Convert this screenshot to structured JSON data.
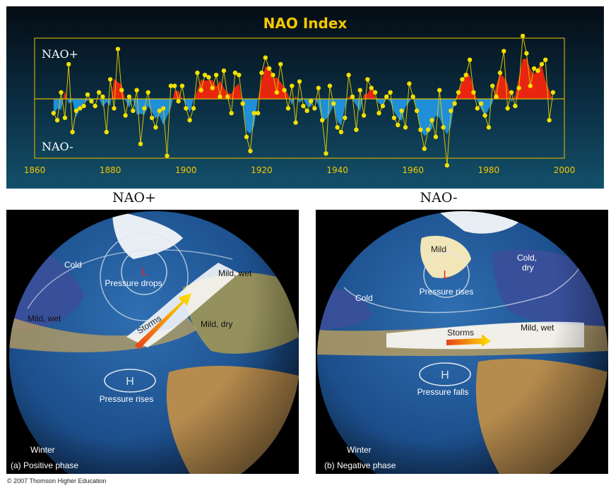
{
  "panel_headings": {
    "positive": "NAO+",
    "negative": "NAO-"
  },
  "chart_data": {
    "type": "area",
    "title": "NAO Index",
    "xlabel": "",
    "ylabel": "",
    "xlim": [
      1860,
      2000
    ],
    "ylim": [
      -2.5,
      2.8
    ],
    "x_ticks": [
      1860,
      1880,
      1900,
      1920,
      1940,
      1960,
      1980,
      2000
    ],
    "annotations": {
      "top": "NAO+",
      "bottom": "NAO-"
    },
    "colors": {
      "positive": "#e8250f",
      "negative": "#1e8fd8",
      "points": "#f2e000",
      "frame": "#c8a800",
      "title": "#f5c800"
    },
    "series": [
      {
        "values": [
          [
            1865,
            -0.6
          ],
          [
            1866,
            -0.9
          ],
          [
            1867,
            0.3
          ],
          [
            1868,
            -0.8
          ],
          [
            1869,
            1.6
          ],
          [
            1870,
            -1.4
          ],
          [
            1871,
            -0.5
          ],
          [
            1872,
            -0.4
          ],
          [
            1873,
            -0.3
          ],
          [
            1874,
            0.2
          ],
          [
            1875,
            -0.1
          ],
          [
            1876,
            -0.3
          ],
          [
            1877,
            0.3
          ],
          [
            1878,
            0.1
          ],
          [
            1879,
            -1.4
          ],
          [
            1880,
            0.9
          ],
          [
            1881,
            -0.4
          ],
          [
            1882,
            2.3
          ],
          [
            1883,
            0.4
          ],
          [
            1884,
            -0.7
          ],
          [
            1885,
            0.1
          ],
          [
            1886,
            -0.5
          ],
          [
            1887,
            0.4
          ],
          [
            1888,
            -1.9
          ],
          [
            1889,
            -0.4
          ],
          [
            1890,
            0.3
          ],
          [
            1891,
            -0.8
          ],
          [
            1892,
            -1.2
          ],
          [
            1893,
            -0.5
          ],
          [
            1894,
            -0.4
          ],
          [
            1895,
            -2.4
          ],
          [
            1896,
            0.6
          ],
          [
            1897,
            0.6
          ],
          [
            1898,
            -0.1
          ],
          [
            1899,
            0.6
          ],
          [
            1900,
            -0.4
          ],
          [
            1901,
            -0.9
          ],
          [
            1902,
            -0.4
          ],
          [
            1903,
            1.2
          ],
          [
            1904,
            0.4
          ],
          [
            1905,
            1.1
          ],
          [
            1906,
            1.0
          ],
          [
            1907,
            0.5
          ],
          [
            1908,
            1.1
          ],
          [
            1909,
            0.1
          ],
          [
            1910,
            1.3
          ],
          [
            1911,
            0.1
          ],
          [
            1912,
            -0.6
          ],
          [
            1913,
            1.2
          ],
          [
            1914,
            1.1
          ],
          [
            1915,
            -0.2
          ],
          [
            1916,
            -1.6
          ],
          [
            1917,
            -2.2
          ],
          [
            1918,
            -0.6
          ],
          [
            1919,
            -0.6
          ],
          [
            1920,
            1.2
          ],
          [
            1921,
            1.9
          ],
          [
            1922,
            1.4
          ],
          [
            1923,
            1.1
          ],
          [
            1924,
            0.3
          ],
          [
            1925,
            1.6
          ],
          [
            1926,
            0.4
          ],
          [
            1927,
            -0.4
          ],
          [
            1928,
            0.6
          ],
          [
            1929,
            -1.0
          ],
          [
            1930,
            0.8
          ],
          [
            1931,
            -0.3
          ],
          [
            1932,
            -0.5
          ],
          [
            1933,
            -0.1
          ],
          [
            1934,
            -0.4
          ],
          [
            1935,
            0.5
          ],
          [
            1936,
            -0.9
          ],
          [
            1937,
            -2.3
          ],
          [
            1938,
            0.6
          ],
          [
            1939,
            -0.2
          ],
          [
            1940,
            -1.2
          ],
          [
            1941,
            -1.4
          ],
          [
            1942,
            -0.8
          ],
          [
            1943,
            1.1
          ],
          [
            1944,
            0.1
          ],
          [
            1945,
            -1.3
          ],
          [
            1946,
            0.4
          ],
          [
            1947,
            -0.7
          ],
          [
            1948,
            0.9
          ],
          [
            1949,
            0.5
          ],
          [
            1950,
            0.3
          ],
          [
            1951,
            -0.6
          ],
          [
            1952,
            -0.3
          ],
          [
            1953,
            0.1
          ],
          [
            1954,
            0.3
          ],
          [
            1955,
            -0.8
          ],
          [
            1956,
            -1.1
          ],
          [
            1957,
            -0.5
          ],
          [
            1958,
            -1.2
          ],
          [
            1959,
            0.7
          ],
          [
            1960,
            0.1
          ],
          [
            1961,
            -0.5
          ],
          [
            1962,
            -1.3
          ],
          [
            1963,
            -2.1
          ],
          [
            1964,
            -1.3
          ],
          [
            1965,
            -0.9
          ],
          [
            1966,
            -1.6
          ],
          [
            1967,
            0.4
          ],
          [
            1968,
            -1.2
          ],
          [
            1969,
            -2.8
          ],
          [
            1970,
            -0.5
          ],
          [
            1971,
            -0.2
          ],
          [
            1972,
            0.3
          ],
          [
            1973,
            0.9
          ],
          [
            1974,
            1.1
          ],
          [
            1975,
            1.8
          ],
          [
            1976,
            0.3
          ],
          [
            1977,
            -0.4
          ],
          [
            1978,
            -0.2
          ],
          [
            1979,
            -0.7
          ],
          [
            1980,
            -1.2
          ],
          [
            1981,
            0.6
          ],
          [
            1982,
            0.1
          ],
          [
            1983,
            1.2
          ],
          [
            1984,
            2.2
          ],
          [
            1985,
            -0.4
          ],
          [
            1986,
            0.3
          ],
          [
            1987,
            -0.3
          ],
          [
            1988,
            0.5
          ],
          [
            1989,
            2.9
          ],
          [
            1990,
            2.1
          ],
          [
            1991,
            0.6
          ],
          [
            1992,
            1.4
          ],
          [
            1993,
            1.3
          ],
          [
            1994,
            1.6
          ],
          [
            1995,
            1.8
          ],
          [
            1996,
            -0.9
          ],
          [
            1997,
            0.3
          ]
        ]
      }
    ]
  },
  "panels": {
    "positive": {
      "labels": {
        "cold": "Cold",
        "low": "L",
        "pressure_drops": "Pressure drops",
        "mild_wet_east": "Mild, wet",
        "mild_wet_west": "Mild, wet",
        "storms": "Storms",
        "mild_dry": "Mild, dry",
        "high": "H",
        "pressure_rises": "Pressure rises",
        "winter": "Winter",
        "caption": "(a) Positive phase"
      }
    },
    "negative": {
      "labels": {
        "mild": "Mild",
        "low": "L",
        "pressure_rises": "Pressure rises",
        "cold_dry": "Cold, dry",
        "cold": "Cold",
        "storms": "Storms",
        "mild_wet": "Mild, wet",
        "high": "H",
        "pressure_falls": "Pressure falls",
        "winter": "Winter",
        "caption": "(b) Negative phase"
      }
    }
  },
  "copyright": "© 2007 Thomson Higher Education"
}
